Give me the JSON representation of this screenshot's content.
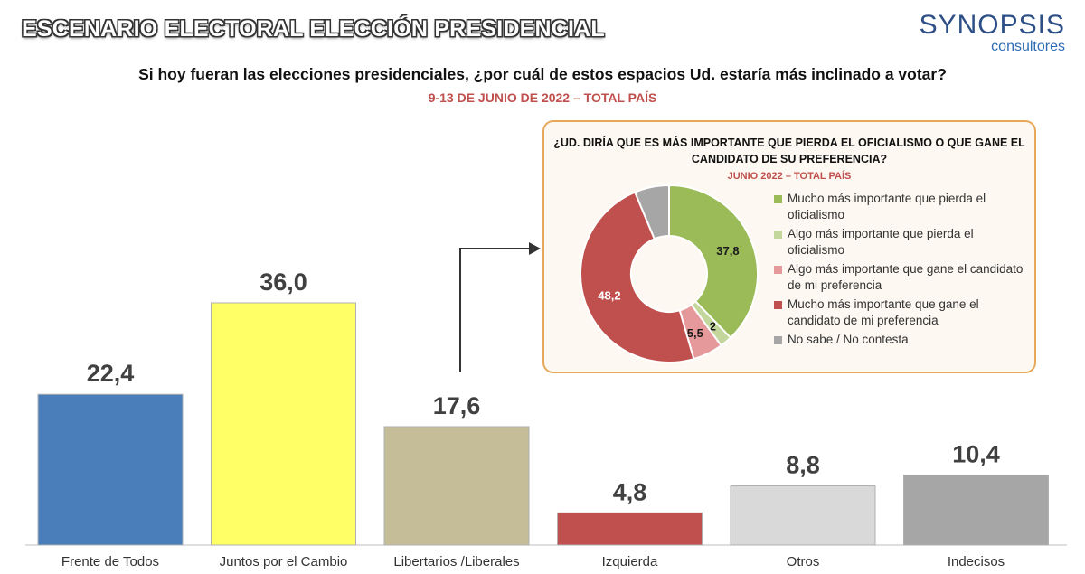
{
  "header": {
    "title": "ESCENARIO ELECTORAL ELECCIÓN PRESIDENCIAL",
    "brand_name": "SYNOPSIS",
    "brand_sub": "consultores"
  },
  "question": "Si hoy fueran las elecciones presidenciales, ¿por cuál de estos espacios Ud. estaría más inclinado a votar?",
  "subtitle": "9-13 DE JUNIO DE 2022 – TOTAL PAÍS",
  "chart_data": [
    {
      "type": "bar",
      "categories": [
        "Frente de Todos",
        "Juntos por el Cambio",
        "Libertarios /Liberales",
        "Izquierda",
        "Otros",
        "Indecisos"
      ],
      "values": [
        22.4,
        36.0,
        17.6,
        4.8,
        8.8,
        10.4
      ],
      "value_labels": [
        "22,4",
        "36,0",
        "17,6",
        "4,8",
        "8,8",
        "10,4"
      ],
      "colors": [
        "#4a7ebb",
        "#ffff66",
        "#c4bd97",
        "#c0504d",
        "#d9d9d9",
        "#a6a6a6"
      ],
      "ylim": [
        0,
        40
      ]
    },
    {
      "type": "pie",
      "title": "¿UD. DIRÍA QUE ES MÁS IMPORTANTE QUE PIERDA EL OFICIALISMO O QUE GANE EL CANDIDATO DE SU PREFERENCIA?",
      "subtitle": "JUNIO 2022 – TOTAL PAÍS",
      "labels": [
        "Mucho más importante que pierda el oficialismo",
        "Algo más importante que pierda el oficialismo",
        "Algo más importante que gane el candidato de mi preferencia",
        "Mucho más importante que gane el candidato de mi preferencia",
        "No sabe / No contesta"
      ],
      "values": [
        37.8,
        2.2,
        5.5,
        48.2,
        6.3
      ],
      "value_labels": [
        "37,8",
        "2,2",
        "5,5",
        "48,2",
        ""
      ],
      "colors": [
        "#9bbb59",
        "#c3d69b",
        "#e6999b",
        "#c0504d",
        "#a6a6a6"
      ],
      "legend_position": "right"
    }
  ]
}
